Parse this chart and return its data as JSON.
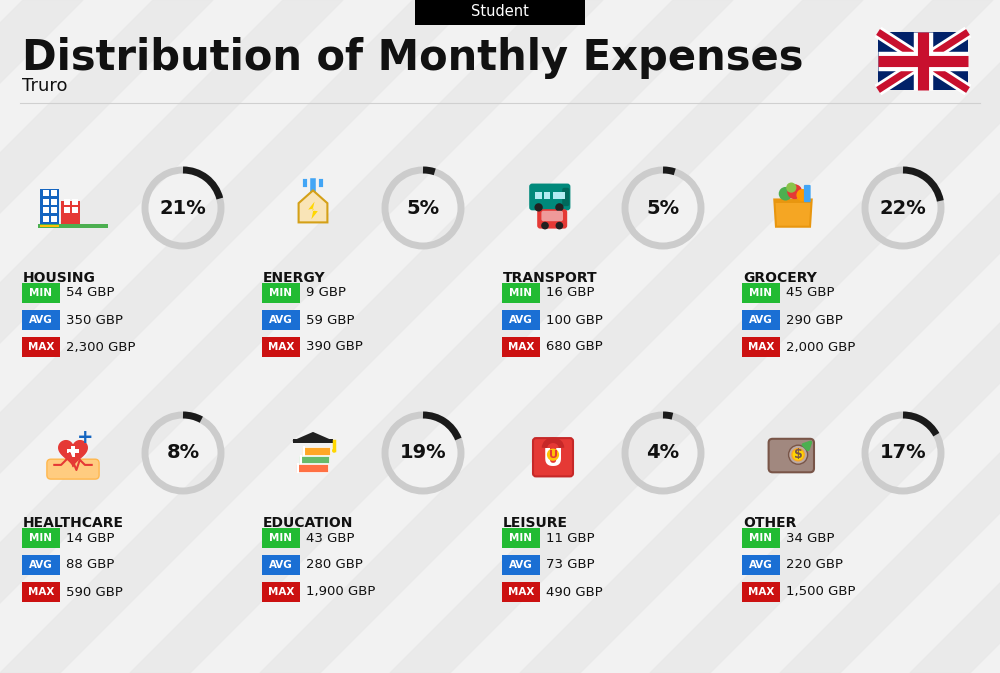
{
  "title": "Distribution of Monthly Expenses",
  "subtitle": "Student",
  "location": "Truro",
  "bg_color": "#f2f2f2",
  "categories": [
    {
      "name": "HOUSING",
      "pct": 21,
      "min": "54 GBP",
      "avg": "350 GBP",
      "max": "2,300 GBP",
      "icon": "housing",
      "row": 0,
      "col": 0
    },
    {
      "name": "ENERGY",
      "pct": 5,
      "min": "9 GBP",
      "avg": "59 GBP",
      "max": "390 GBP",
      "icon": "energy",
      "row": 0,
      "col": 1
    },
    {
      "name": "TRANSPORT",
      "pct": 5,
      "min": "16 GBP",
      "avg": "100 GBP",
      "max": "680 GBP",
      "icon": "transport",
      "row": 0,
      "col": 2
    },
    {
      "name": "GROCERY",
      "pct": 22,
      "min": "45 GBP",
      "avg": "290 GBP",
      "max": "2,000 GBP",
      "icon": "grocery",
      "row": 0,
      "col": 3
    },
    {
      "name": "HEALTHCARE",
      "pct": 8,
      "min": "14 GBP",
      "avg": "88 GBP",
      "max": "590 GBP",
      "icon": "healthcare",
      "row": 1,
      "col": 0
    },
    {
      "name": "EDUCATION",
      "pct": 19,
      "min": "43 GBP",
      "avg": "280 GBP",
      "max": "1,900 GBP",
      "icon": "education",
      "row": 1,
      "col": 1
    },
    {
      "name": "LEISURE",
      "pct": 4,
      "min": "11 GBP",
      "avg": "73 GBP",
      "max": "490 GBP",
      "icon": "leisure",
      "row": 1,
      "col": 2
    },
    {
      "name": "OTHER",
      "pct": 17,
      "min": "34 GBP",
      "avg": "220 GBP",
      "max": "1,500 GBP",
      "icon": "other",
      "row": 1,
      "col": 3
    }
  ],
  "min_color": "#22bb33",
  "avg_color": "#1a6fd4",
  "max_color": "#cc1111",
  "arc_dark": "#1a1a1a",
  "arc_light": "#cccccc",
  "text_color": "#111111"
}
